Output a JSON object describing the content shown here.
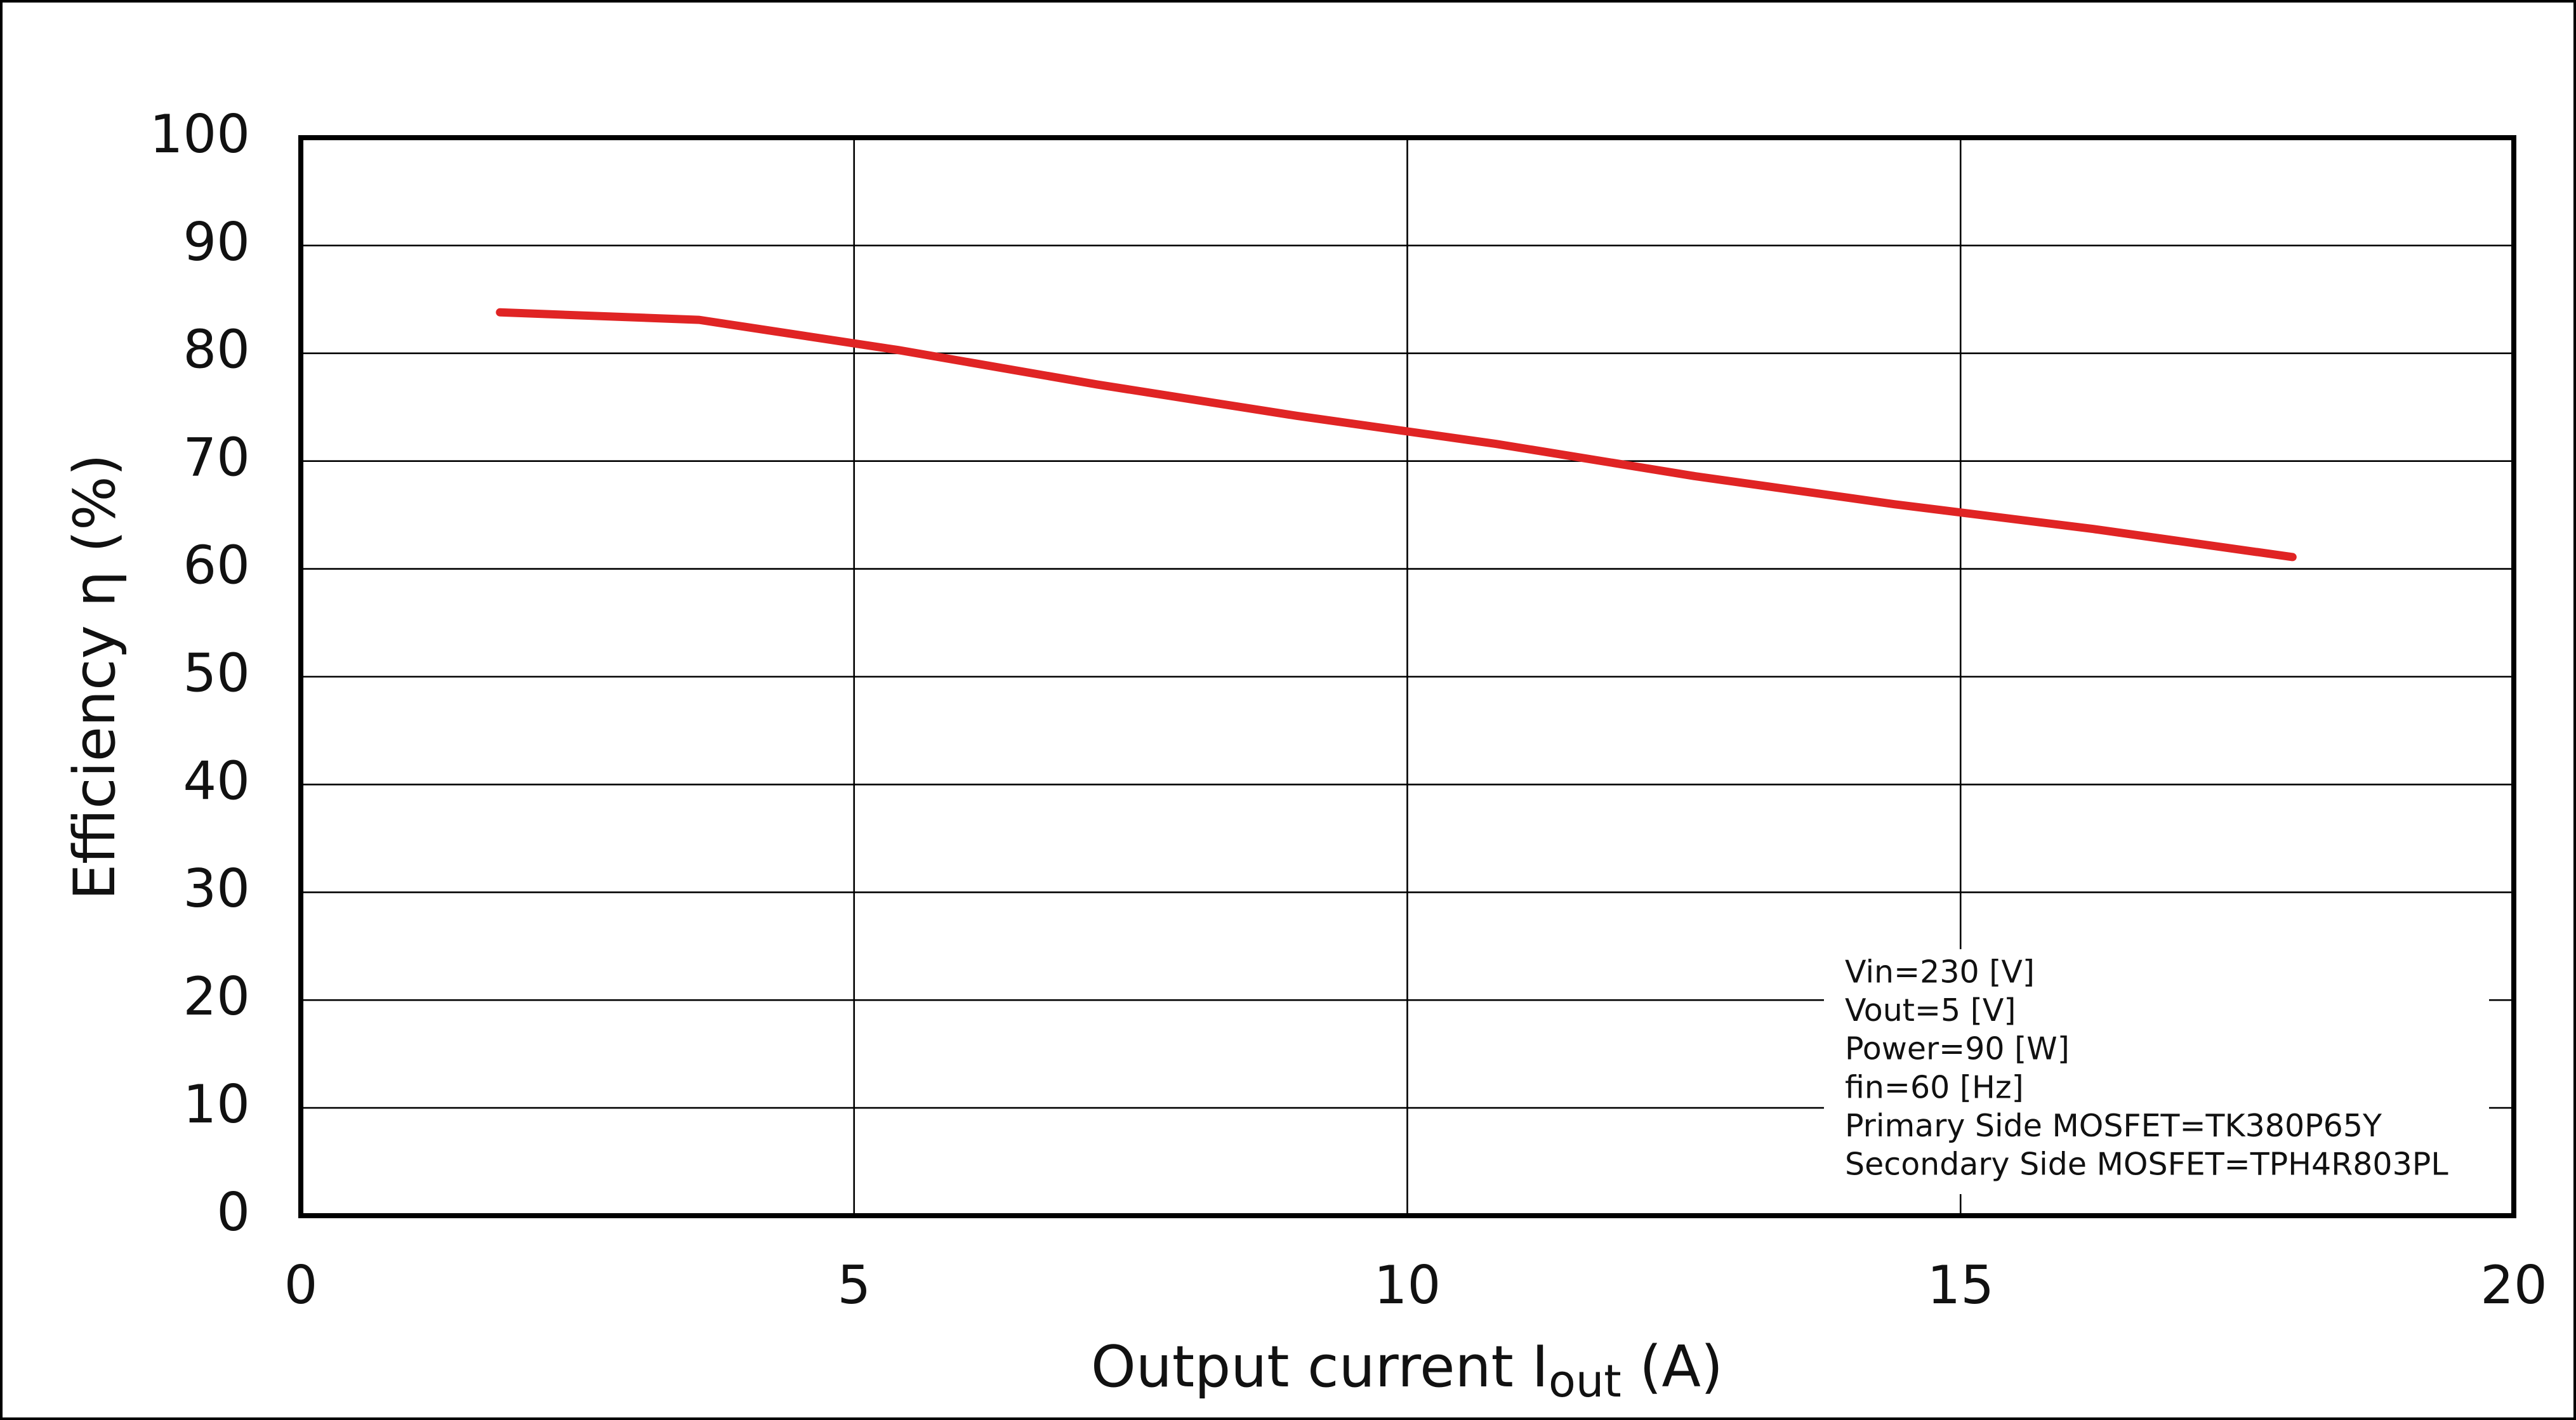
{
  "chart_data": {
    "type": "line",
    "ylabel": "Efficiency  η (%)",
    "xlabel_parts": [
      "Output current  I",
      "out",
      " (A)"
    ],
    "x": [
      1.8,
      3.6,
      5.4,
      7.2,
      9.0,
      10.8,
      12.6,
      14.4,
      16.2,
      18.0
    ],
    "series": [
      {
        "color": "#e02424",
        "values": [
          83.8,
          83.1,
          80.3,
          77.1,
          74.2,
          71.6,
          68.6,
          66.0,
          63.7,
          61.1
        ]
      }
    ],
    "xlim": [
      0,
      20
    ],
    "xticks": [
      0,
      5,
      10,
      15,
      20
    ],
    "ylim": [
      0,
      100
    ],
    "yticks": [
      0,
      10,
      20,
      30,
      40,
      50,
      60,
      70,
      80,
      90,
      100
    ],
    "grid": true,
    "annotation": [
      "Vin=230 [V]",
      "Vout=5 [V]",
      "Power=90 [W]",
      "fin=60 [Hz]",
      "Primary Side MOSFET=TK380P65Y",
      "Secondary Side MOSFET=TPH4R803PL"
    ]
  }
}
